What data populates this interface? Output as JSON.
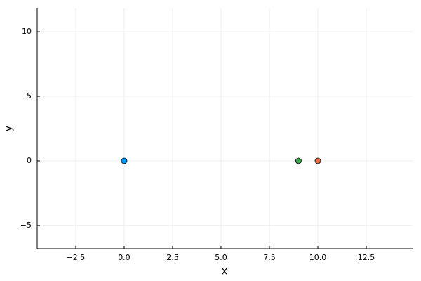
{
  "chart_data": {
    "type": "scatter",
    "x_label": "x",
    "y_label": "y",
    "series": [
      {
        "color": "#009af9",
        "x": [
          0
        ],
        "values": [
          0
        ]
      },
      {
        "color": "#e26f46",
        "x": [
          10
        ],
        "values": [
          0
        ]
      },
      {
        "color": "#3da44d",
        "x": [
          9
        ],
        "values": [
          0
        ]
      }
    ],
    "xlim": [
      -4.49,
      14.89
    ],
    "ylim": [
      -6.8,
      11.8
    ],
    "xticks": [
      {
        "value": -2.5,
        "label": "−2.5"
      },
      {
        "value": 0,
        "label": "0.0"
      },
      2.5,
      {
        "value": 5,
        "label": "5.0"
      },
      7.5,
      {
        "value": 10,
        "label": "10.0"
      },
      12.5
    ],
    "yticks": [
      {
        "value": -5,
        "label": "−5"
      },
      0,
      5,
      10
    ],
    "grid": true
  }
}
